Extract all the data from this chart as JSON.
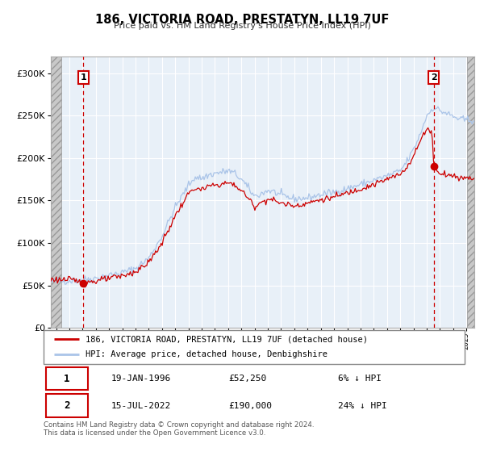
{
  "title": "186, VICTORIA ROAD, PRESTATYN, LL19 7UF",
  "subtitle": "Price paid vs. HM Land Registry's House Price Index (HPI)",
  "ylim": [
    0,
    320000
  ],
  "xlim_start": 1993.6,
  "xlim_end": 2025.6,
  "hpi_color": "#aac4e8",
  "price_color": "#cc0000",
  "sale1_date": 1996.05,
  "sale1_price": 52250,
  "sale2_date": 2022.54,
  "sale2_price": 190000,
  "legend_line1": "186, VICTORIA ROAD, PRESTATYN, LL19 7UF (detached house)",
  "legend_line2": "HPI: Average price, detached house, Denbighshire",
  "table_row1": [
    "1",
    "19-JAN-1996",
    "£52,250",
    "6% ↓ HPI"
  ],
  "table_row2": [
    "2",
    "15-JUL-2022",
    "£190,000",
    "24% ↓ HPI"
  ],
  "footnote1": "Contains HM Land Registry data © Crown copyright and database right 2024.",
  "footnote2": "This data is licensed under the Open Government Licence v3.0.",
  "plot_bg_color": "#e8f0f8",
  "grid_color": "#ffffff",
  "hatch_color": "#c8c8c8",
  "hatch_left_end": 1994.42,
  "hatch_right_start": 2025.08
}
